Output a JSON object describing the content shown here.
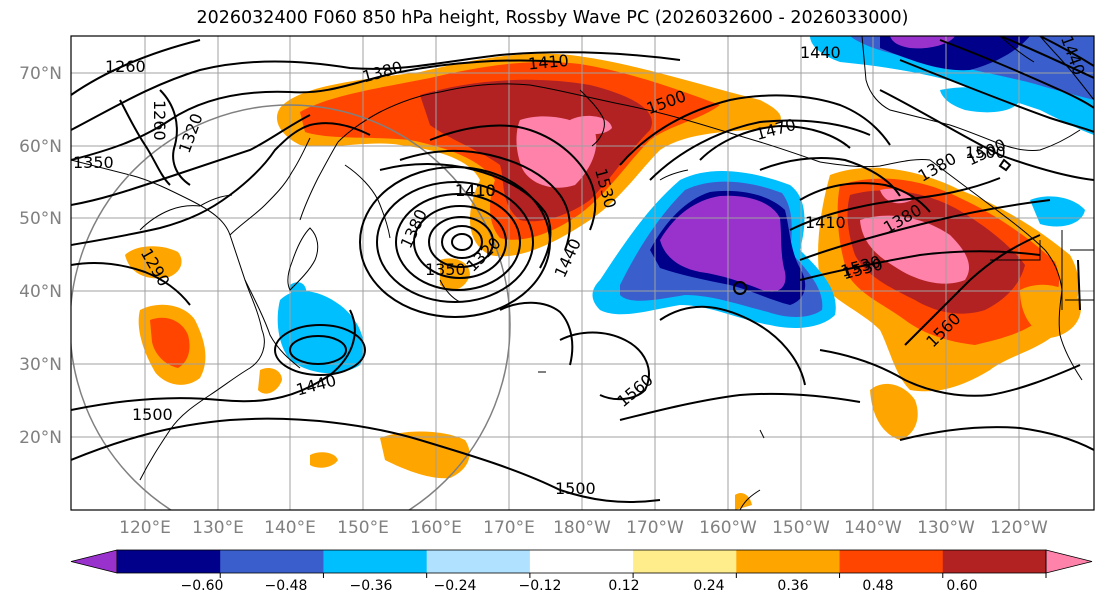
{
  "title": "2026032400 F060 850 hPa height, Rossby Wave PC (2026032600 - 2026033000)",
  "latitude_labels": [
    "70°N",
    "60°N",
    "50°N",
    "40°N",
    "30°N",
    "20°N"
  ],
  "longitude_labels": [
    "120°E",
    "130°E",
    "140°E",
    "150°E",
    "160°E",
    "170°E",
    "180°W",
    "170°W",
    "160°W",
    "150°W",
    "140°W",
    "130°W",
    "120°W"
  ],
  "contour_labels": [
    "1260",
    "1260",
    "1290",
    "1320",
    "1350",
    "1380",
    "1410",
    "1440",
    "1410",
    "1500",
    "1470",
    "1500",
    "1440",
    "1410",
    "1380",
    "1530",
    "1530",
    "1410",
    "1380",
    "1350",
    "1320",
    "1440",
    "1500",
    "1440",
    "1410",
    "1380",
    "1530",
    "1560",
    "1470",
    "1560",
    "1500",
    "1500"
  ],
  "colorbar": {
    "ticks": [
      "−0.60",
      "−0.48",
      "−0.36",
      "−0.24",
      "−0.12",
      "0.12",
      "0.24",
      "0.36",
      "0.48",
      "0.60"
    ],
    "colors": [
      "#9932cc",
      "#00008b",
      "#3a5fcd",
      "#00bfff",
      "#b0e2ff",
      "#ffffff",
      "#ffec8b",
      "#ffa500",
      "#ff4500",
      "#b22222",
      "#ff82ab"
    ]
  }
}
